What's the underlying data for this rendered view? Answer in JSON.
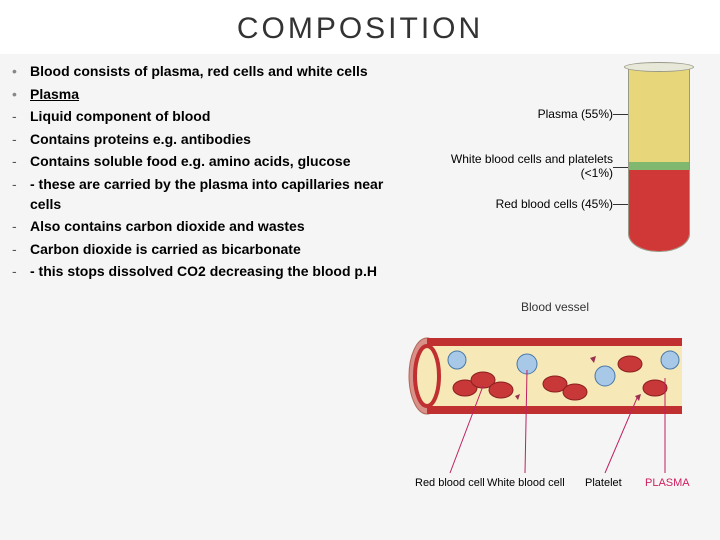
{
  "title": "COMPOSITION",
  "bullets": [
    {
      "marker": "•",
      "text": "Blood consists of plasma, red cells and white cells",
      "underline": false
    },
    {
      "marker": "•",
      "text": "Plasma",
      "underline": true
    },
    {
      "marker": "-",
      "text": "Liquid component of blood",
      "underline": false
    },
    {
      "marker": "-",
      "text": "Contains proteins e.g. antibodies",
      "underline": false
    },
    {
      "marker": "-",
      "text": "Contains soluble food e.g. amino acids, glucose",
      "underline": false
    },
    {
      "marker": "-",
      "text": "- these are carried by the plasma into capillaries near cells",
      "underline": false
    },
    {
      "marker": "-",
      "text": "Also contains carbon dioxide and wastes",
      "underline": false
    },
    {
      "marker": "-",
      "text": "Carbon dioxide is carried as bicarbonate",
      "underline": false
    },
    {
      "marker": "-",
      "text": "- this stops dissolved CO2 decreasing the blood p.H",
      "underline": false
    }
  ],
  "tube": {
    "labels": {
      "plasma": "Plasma (55%)",
      "wbc": "White blood cells and platelets (<1%)",
      "rbc": "Red blood cells (45%)"
    },
    "colors": {
      "plasma": "#e8d67a",
      "wbc": "#7fb86e",
      "rbc": "#d03838",
      "glass": "#f0ece0"
    }
  },
  "vessel": {
    "title": "Blood vessel",
    "labels": {
      "rbc": "Red blood cell",
      "wbc": "White blood cell",
      "platelet": "Platelet",
      "plasma": "PLASMA"
    },
    "colors": {
      "wall_outer": "#d89088",
      "wall_inner": "#c03030",
      "plasma": "#f7e8b8",
      "rbc_fill": "#c83838",
      "rbc_stroke": "#8a1f1f",
      "wbc_fill": "#a8c8e8",
      "wbc_stroke": "#4878a8",
      "platelet": "#9a3050",
      "pointer": "#c02060"
    }
  }
}
